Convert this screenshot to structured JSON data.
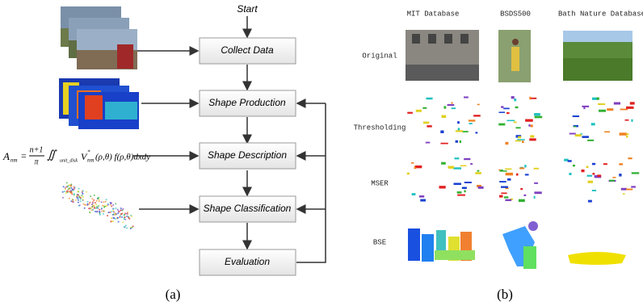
{
  "panel_a": {
    "start": "Start",
    "steps": [
      "Collect Data",
      "Shape Production",
      "Shape Description",
      "Shape Classification",
      "Evaluation"
    ],
    "formula": {
      "lhs": "A",
      "lhs_sub": "nm",
      "numerator": "n+1",
      "denominator": "π",
      "integral": "∬",
      "domain": "unit_disk",
      "kernel": "V",
      "kernel_sup": "*",
      "kernel_sub": "nm",
      "rest": "(ρ,θ) f(ρ,θ)dxdy"
    },
    "caption": "(a)"
  },
  "panel_b": {
    "columns": [
      "MIT Database",
      "BSDS500",
      "Bath Nature Database"
    ],
    "rows": [
      "Original",
      "Thresholding",
      "MSER",
      "BSE"
    ],
    "caption": "(b)"
  }
}
